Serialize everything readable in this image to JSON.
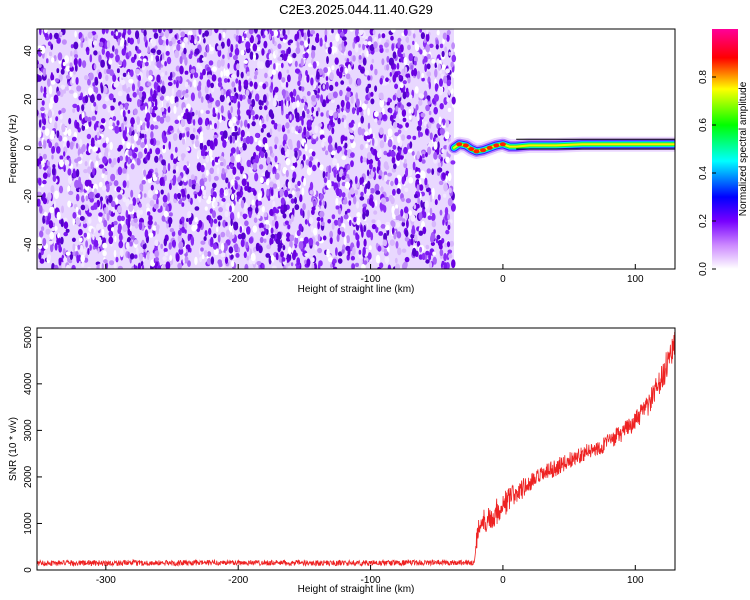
{
  "title": "C2E3.2025.044.11.40.G29",
  "chart_data": [
    {
      "type": "heatmap",
      "xlabel": "Height of straight line (km)",
      "ylabel": "Frequency (Hz)",
      "xlim": [
        -352,
        130
      ],
      "ylim": [
        -50,
        49
      ],
      "xticks": [
        -300,
        -200,
        -100,
        0,
        100
      ],
      "yticks": [
        -40,
        -20,
        0,
        20,
        40
      ],
      "noise_region_x": [
        -352,
        -37
      ],
      "signal_start_x": -37,
      "signal_trace": [
        {
          "x": -37,
          "f": 0.0
        },
        {
          "x": -33,
          "f": 1.5
        },
        {
          "x": -28,
          "f": 1.0
        },
        {
          "x": -24,
          "f": -0.5
        },
        {
          "x": -20,
          "f": -1.5
        },
        {
          "x": -15,
          "f": -1.0
        },
        {
          "x": -10,
          "f": 0.0
        },
        {
          "x": -5,
          "f": 1.0
        },
        {
          "x": 0,
          "f": 1.5
        },
        {
          "x": 5,
          "f": 0.5
        },
        {
          "x": 10,
          "f": 0.5
        },
        {
          "x": 20,
          "f": 1.0
        },
        {
          "x": 40,
          "f": 1.0
        },
        {
          "x": 60,
          "f": 1.5
        },
        {
          "x": 80,
          "f": 1.5
        },
        {
          "x": 100,
          "f": 1.5
        },
        {
          "x": 130,
          "f": 1.5
        }
      ],
      "grid": false,
      "colorbar": {
        "label": "Normalized spectral amplitude",
        "range": [
          0,
          1
        ],
        "ticks": [
          0.0,
          0.2,
          0.4,
          0.6,
          0.8
        ],
        "colors": [
          "#ffffff",
          "#8800ff",
          "#0000ff",
          "#00ffff",
          "#00ff00",
          "#ffff00",
          "#ff0000",
          "#ff00aa"
        ]
      }
    },
    {
      "type": "line",
      "xlabel": "Height of straight line (km)",
      "ylabel": "SNR (10 * v/v)",
      "xlim": [
        -352,
        130
      ],
      "ylim": [
        0,
        5200
      ],
      "xticks": [
        -300,
        -200,
        -100,
        0,
        100
      ],
      "yticks": [
        0,
        1000,
        2000,
        3000,
        4000,
        5000
      ],
      "color": "#ee2222",
      "grid": false,
      "series": [
        {
          "points": [
            [
              -352,
              150
            ],
            [
              -300,
              150
            ],
            [
              -250,
              150
            ],
            [
              -200,
              160
            ],
            [
              -150,
              150
            ],
            [
              -100,
              150
            ],
            [
              -50,
              160
            ],
            [
              -22,
              160
            ],
            [
              -20,
              600
            ],
            [
              -17,
              1050
            ],
            [
              -10,
              1100
            ],
            [
              0,
              1400
            ],
            [
              10,
              1650
            ],
            [
              20,
              1850
            ],
            [
              30,
              2050
            ],
            [
              40,
              2200
            ],
            [
              50,
              2350
            ],
            [
              60,
              2500
            ],
            [
              70,
              2600
            ],
            [
              80,
              2750
            ],
            [
              90,
              2950
            ],
            [
              100,
              3200
            ],
            [
              110,
              3550
            ],
            [
              120,
              4100
            ],
            [
              125,
              4500
            ],
            [
              130,
              4950
            ]
          ],
          "noise_amplitude": [
            [
              -352,
              60
            ],
            [
              -22,
              60
            ],
            [
              -20,
              250
            ],
            [
              0,
              300
            ],
            [
              20,
              200
            ],
            [
              60,
              170
            ],
            [
              100,
              200
            ],
            [
              130,
              350
            ]
          ]
        }
      ]
    }
  ]
}
